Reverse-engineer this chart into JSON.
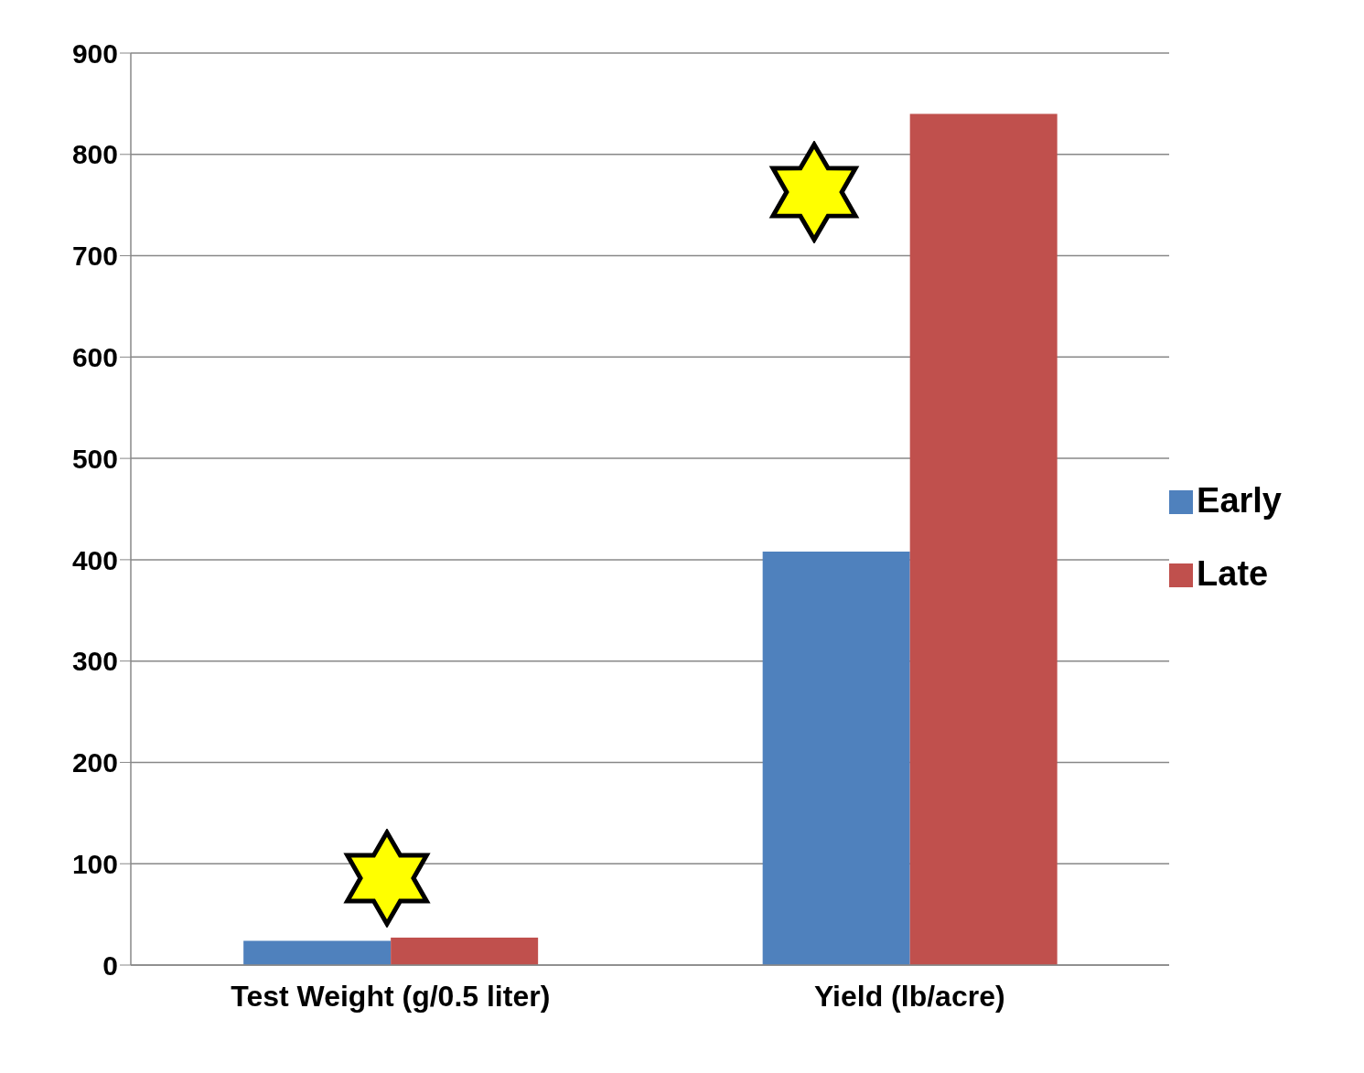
{
  "chart_data": {
    "type": "bar",
    "categories": [
      "Test Weight (g/0.5 liter)",
      "Yield (lb/acre)"
    ],
    "series": [
      {
        "name": "Early",
        "color": "#4f81bd",
        "values": [
          24,
          408
        ]
      },
      {
        "name": "Late",
        "color": "#c0504d",
        "values": [
          27,
          840
        ]
      }
    ],
    "ylim": [
      0,
      900
    ],
    "yticks": [
      0,
      100,
      200,
      300,
      400,
      500,
      600,
      700,
      800,
      900
    ],
    "grid": "y",
    "legend": "right"
  }
}
